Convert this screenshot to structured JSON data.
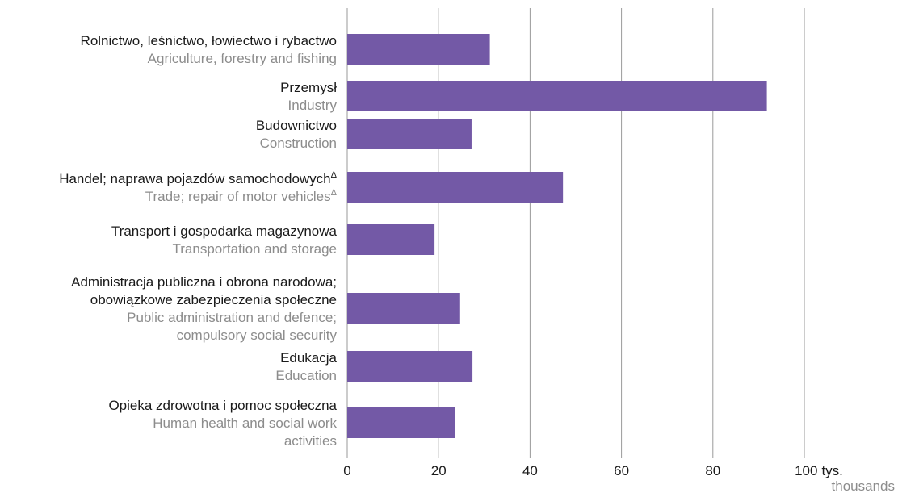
{
  "chart_data": {
    "type": "bar",
    "orientation": "horizontal",
    "categories": [
      {
        "pl": [
          "Rolnictwo, leśnictwo, łowiectwo i rybactwo"
        ],
        "en": [
          "Agriculture, forestry and fishing"
        ]
      },
      {
        "pl": [
          "Przemysł"
        ],
        "en": [
          "Industry"
        ]
      },
      {
        "pl": [
          "Budownictwo"
        ],
        "en": [
          "Construction"
        ]
      },
      {
        "pl": [
          "Handel; naprawa pojazdów samochodowych"
        ],
        "pl_sup": "Δ",
        "en": [
          "Trade; repair of motor vehicles"
        ],
        "en_sup": "Δ"
      },
      {
        "pl": [
          "Transport i gospodarka magazynowa"
        ],
        "en": [
          "Transportation and storage"
        ]
      },
      {
        "pl": [
          "Administracja publiczna i obrona narodowa;",
          "obowiązkowe zabezpieczenia społeczne"
        ],
        "en": [
          "Public administration and defence;",
          "compulsory social security"
        ]
      },
      {
        "pl": [
          "Edukacja"
        ],
        "en": [
          "Education"
        ]
      },
      {
        "pl": [
          "Opieka zdrowotna i pomoc społeczna"
        ],
        "en": [
          "Human health and social work",
          "activities"
        ]
      }
    ],
    "values": [
      31.2,
      91.8,
      27.2,
      47.2,
      19.1,
      24.7,
      27.4,
      23.5
    ],
    "xlim": [
      0,
      100
    ],
    "ticks": [
      0,
      20,
      40,
      60,
      80,
      100
    ],
    "x_unit_pl": "tys.",
    "x_unit_en": "thousands",
    "bar_color": "#7359a6",
    "grid": true
  }
}
